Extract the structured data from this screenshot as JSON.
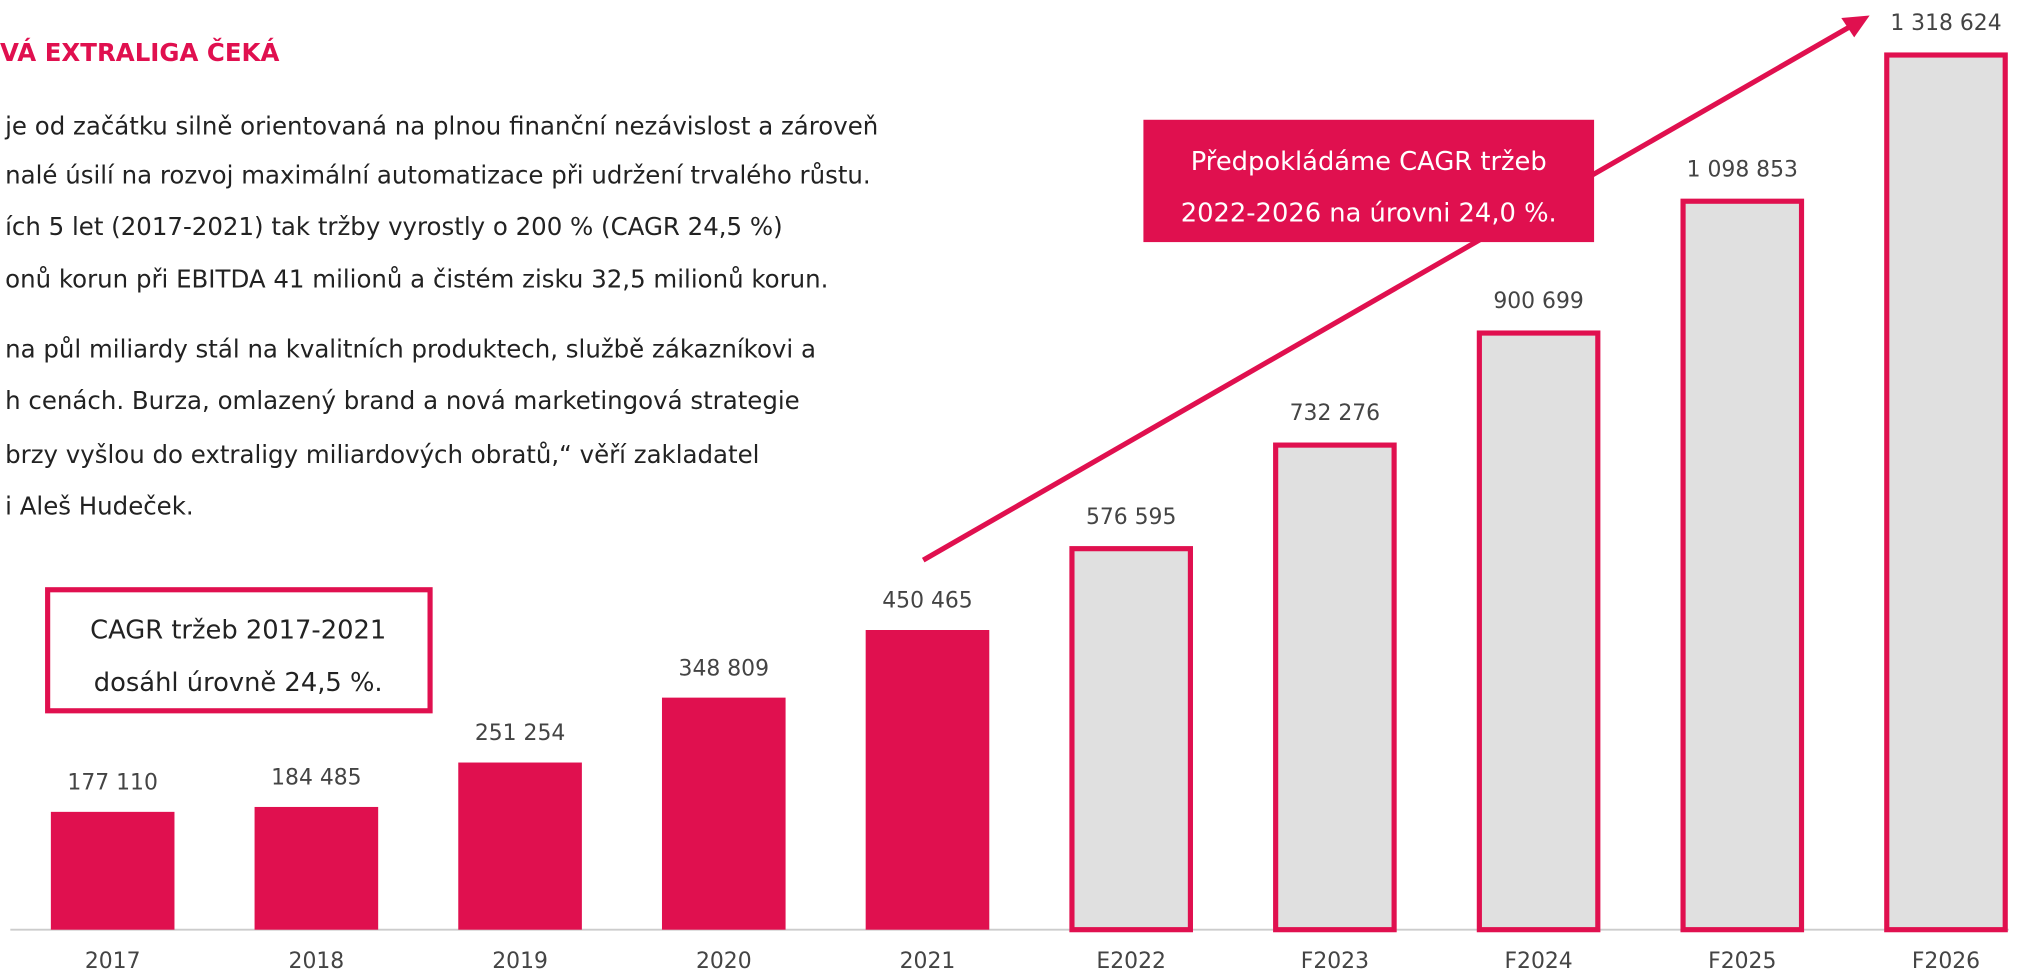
{
  "heading": "VÁ EXTRALIGA ČEKÁ",
  "paragraphs": [
    [
      "je od začátku silně orientovaná na plnou finanční nezávislost a zároveň",
      "nalé úsilí na rozvoj maximální automatizace při udržení trvalého růstu.",
      "ích 5 let (2017-2021) tak tržby vyrostly o 200 % (CAGR 24,5 %)",
      "onů korun při EBITDA 41 milionů a čistém zisku 32,5 milionů korun."
    ],
    [
      "na půl miliardy stál na kvalitních produktech, službě zákazníkovi a",
      "h cenách. Burza, omlazený brand a nová marketingová strategie",
      "brzy vyšlou do extraligy miliardových obratů,“ věří zakladatel",
      "i Aleš Hudeček."
    ]
  ],
  "chart_data": {
    "type": "bar",
    "categories": [
      "2017",
      "2018",
      "2019",
      "2020",
      "2021",
      "E2022",
      "F2023",
      "F2024",
      "F2025",
      "F2026"
    ],
    "values": [
      177110,
      184485,
      251254,
      348809,
      450465,
      576595,
      732276,
      900699,
      1098853,
      1318624
    ],
    "value_labels": [
      "177 110",
      "184 485",
      "251 254",
      "348 809",
      "450 465",
      "576 595",
      "732 276",
      "900 699",
      "1 098 853",
      "1 318 624"
    ],
    "colors": [
      "#e0104f",
      "#e0104f",
      "#e0104f",
      "#e0104f",
      "#e0104f",
      "#e0e0e0",
      "#e0e0e0",
      "#e0e0e0",
      "#e0e0e0",
      "#e0e0e0"
    ],
    "edge_colors": [
      null,
      null,
      null,
      null,
      null,
      "#e0104f",
      "#e0104f",
      "#e0104f",
      "#e0104f",
      "#e0104f"
    ],
    "ylim": [
      0,
      1320000
    ],
    "annotations": [
      {
        "lines": [
          "CAGR tržeb 2017-2021",
          "dosáhl úrovně 24,5 %."
        ]
      },
      {
        "lines": [
          "Předpokládáme CAGR tržeb",
          "2022-2026 na úrovni 24,0 %."
        ]
      }
    ]
  }
}
